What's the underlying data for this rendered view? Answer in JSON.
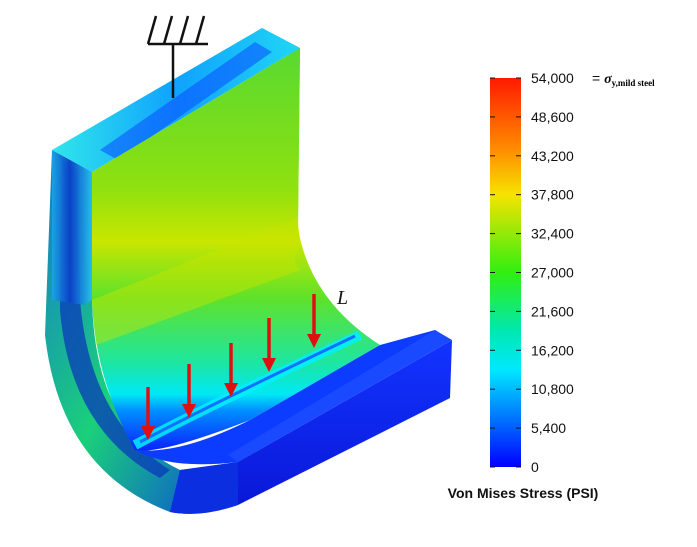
{
  "legend": {
    "title": "Von Mises Stress (PSI)",
    "ticks": [
      "54,000",
      "48,600",
      "43,200",
      "37,800",
      "32,400",
      "27,000",
      "21,600",
      "16,200",
      "10,800",
      "5,400",
      "0"
    ],
    "top_suffix_eq": " = ",
    "top_suffix_sigma": "σ",
    "top_suffix_subscript": "y,mild steel",
    "colors": [
      "#ff1a00",
      "#ff8a00",
      "#e9ff00",
      "#14ef14",
      "#00e8ff",
      "#0000ff"
    ]
  },
  "load_label": "L",
  "icons": {
    "support": "fixed-support-icon",
    "load": "distributed-load-arrow-icon"
  }
}
